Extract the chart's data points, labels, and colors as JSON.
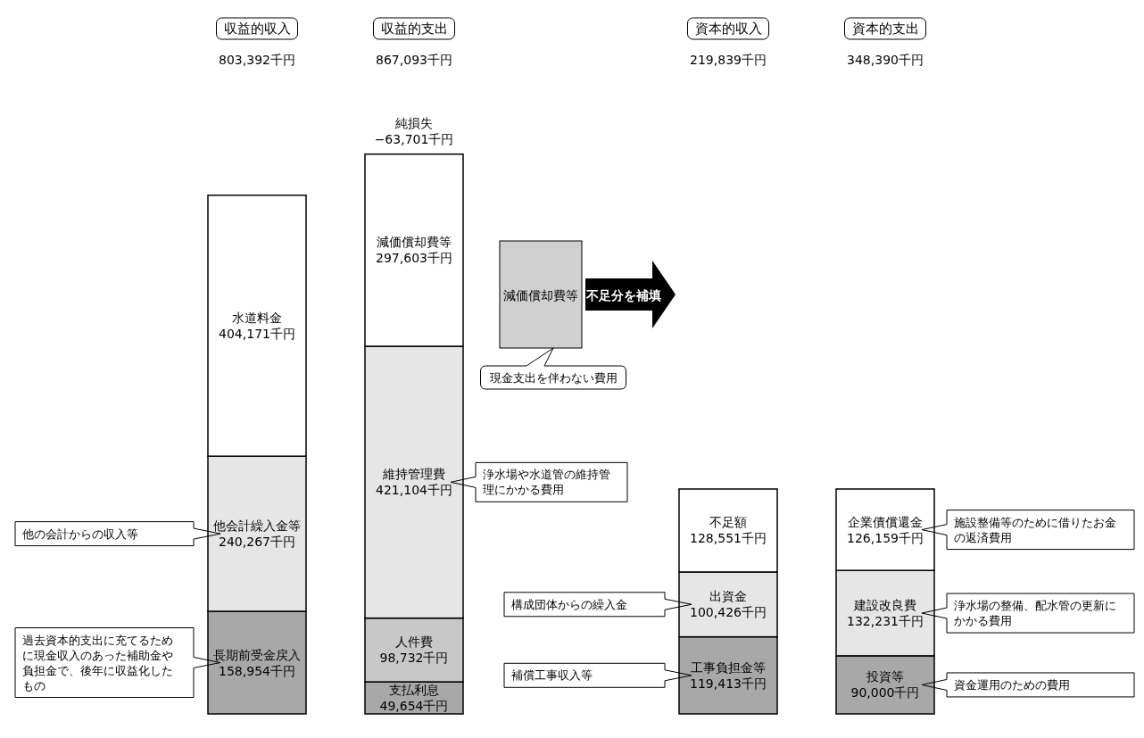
{
  "chart_data": {
    "type": "bar",
    "stacked": true,
    "tick_labels": "x",
    "categories": [
      "収益的収入",
      "収益的支出",
      null,
      "資本的収入",
      "資本的支出"
    ],
    "series": [
      {
        "name": "長期前受金戻入",
        "color": "#a8a8a8",
        "values": [
          158954,
          null,
          null,
          null,
          null
        ],
        "value_labels": [
          "158,954千円",
          null,
          null,
          null,
          null
        ]
      },
      {
        "name": "支払利息",
        "color": "#a8a8a8",
        "values": [
          null,
          49654,
          null,
          null,
          null
        ],
        "value_labels": [
          null,
          "49,654千円",
          null,
          null,
          null
        ]
      },
      {
        "name": "工事負担金等",
        "color": "#a8a8a8",
        "values": [
          null,
          null,
          null,
          119413,
          null
        ],
        "value_labels": [
          null,
          null,
          null,
          "119,413千円",
          null
        ]
      },
      {
        "name": "投資等",
        "color": "#a8a8a8",
        "values": [
          null,
          null,
          null,
          null,
          90000
        ],
        "value_labels": [
          null,
          null,
          null,
          null,
          "90,000千円"
        ]
      },
      {
        "name": "他会計繰入金等",
        "color": "#e6e6e6",
        "values": [
          240267,
          null,
          null,
          null,
          null
        ],
        "value_labels": [
          "240,267千円",
          null,
          null,
          null,
          null
        ]
      },
      {
        "name": "人件費",
        "color": "#c8c8c8",
        "values": [
          null,
          98732,
          null,
          null,
          null
        ],
        "value_labels": [
          null,
          "98,732千円",
          null,
          null,
          null
        ]
      },
      {
        "name": "出資金",
        "color": "#e6e6e6",
        "values": [
          null,
          null,
          null,
          100426,
          null
        ],
        "value_labels": [
          null,
          null,
          null,
          "100,426千円",
          null
        ]
      },
      {
        "name": "建設改良費",
        "color": "#e6e6e6",
        "values": [
          null,
          null,
          null,
          null,
          132231
        ],
        "value_labels": [
          null,
          null,
          null,
          null,
          "132,231千円"
        ]
      },
      {
        "name": "水道料金",
        "color": "#ffffff",
        "values": [
          404171,
          null,
          null,
          null,
          null
        ],
        "value_labels": [
          "404,171千円",
          null,
          null,
          null,
          null
        ]
      },
      {
        "name": "維持管理費",
        "color": "#e6e6e6",
        "values": [
          null,
          421104,
          null,
          null,
          null
        ],
        "value_labels": [
          null,
          "421,104千円",
          null,
          null,
          null
        ]
      },
      {
        "name": "不足額",
        "color": "#ffffff",
        "values": [
          null,
          null,
          null,
          128551,
          null
        ],
        "value_labels": [
          null,
          null,
          null,
          "128,551千円",
          null
        ]
      },
      {
        "name": "企業債償還金",
        "color": "#ffffff",
        "values": [
          null,
          null,
          null,
          null,
          126159
        ],
        "value_labels": [
          null,
          null,
          null,
          null,
          "126,159千円"
        ]
      },
      {
        "name": "減価償却費等",
        "color": "#ffffff",
        "values": [
          null,
          297603,
          null,
          null,
          null
        ],
        "value_labels": [
          null,
          "297,603千円",
          null,
          null,
          null
        ]
      }
    ],
    "annotations": [
      "減価償却費等",
      "現金支出を伴わない費用",
      "不足分を補填",
      "803,392千円",
      "867,093千円",
      "219,839千円",
      "348,390千円",
      "他の会計からの収入等",
      "過去資本的支出に充てるために現金収入のあった補助金や負担金で、後年に収益化したもの",
      "浄水場や水道管の維持管理にかかる費用",
      "構成団体からの繰入金",
      "補償工事収入等",
      "施設整備等のために借りたお金の返済費用",
      "浄水場の整備、配水管の更新にかかる費用",
      "資金運用のための費用",
      {
        "text": "純損失\n−63,701千円",
        "x": "収益的支出",
        "y": 867093
      }
    ]
  }
}
